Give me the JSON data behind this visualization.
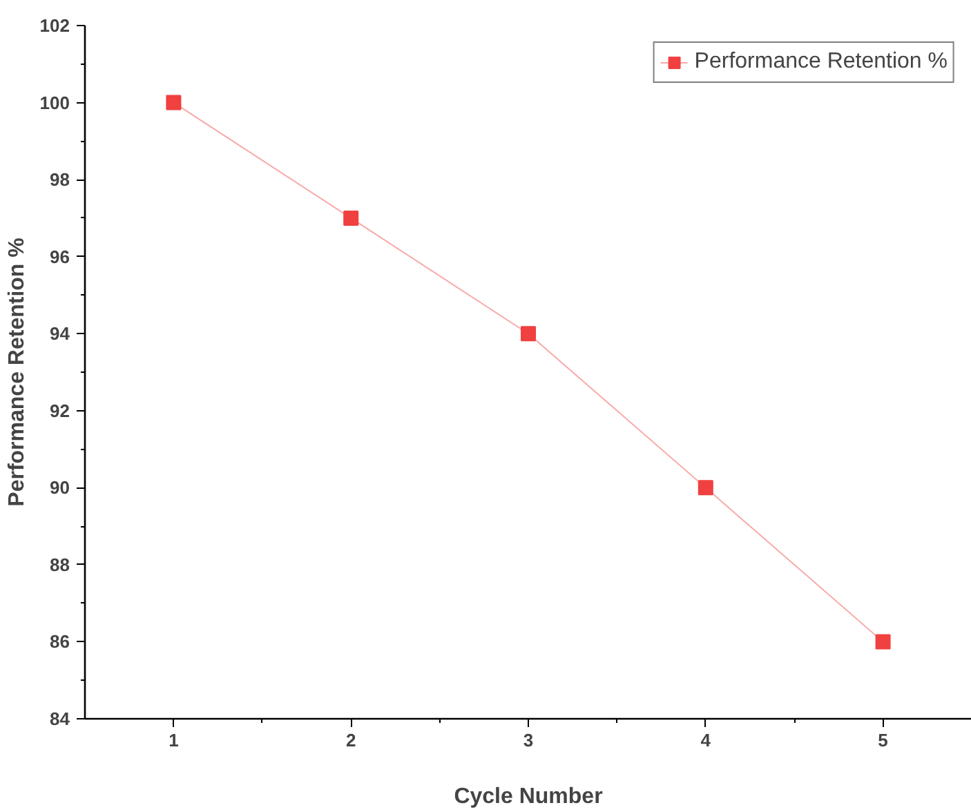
{
  "chart_data": {
    "type": "line",
    "xlabel": "Cycle Number",
    "ylabel": "Performance Retention %",
    "x": [
      1,
      2,
      3,
      4,
      5
    ],
    "series": [
      {
        "name": "Performance Retention %",
        "color": "#f04040",
        "values": [
          100,
          97,
          94,
          90,
          86
        ]
      }
    ],
    "xlim": [
      0.5,
      5.5
    ],
    "xticks": [
      1,
      2,
      3,
      4,
      5
    ],
    "ylim": [
      84,
      102
    ],
    "yticks": [
      84,
      86,
      88,
      90,
      92,
      94,
      96,
      98,
      100,
      102
    ],
    "marker": "square",
    "line_style": "solid",
    "grid": false,
    "legend": "top right"
  }
}
